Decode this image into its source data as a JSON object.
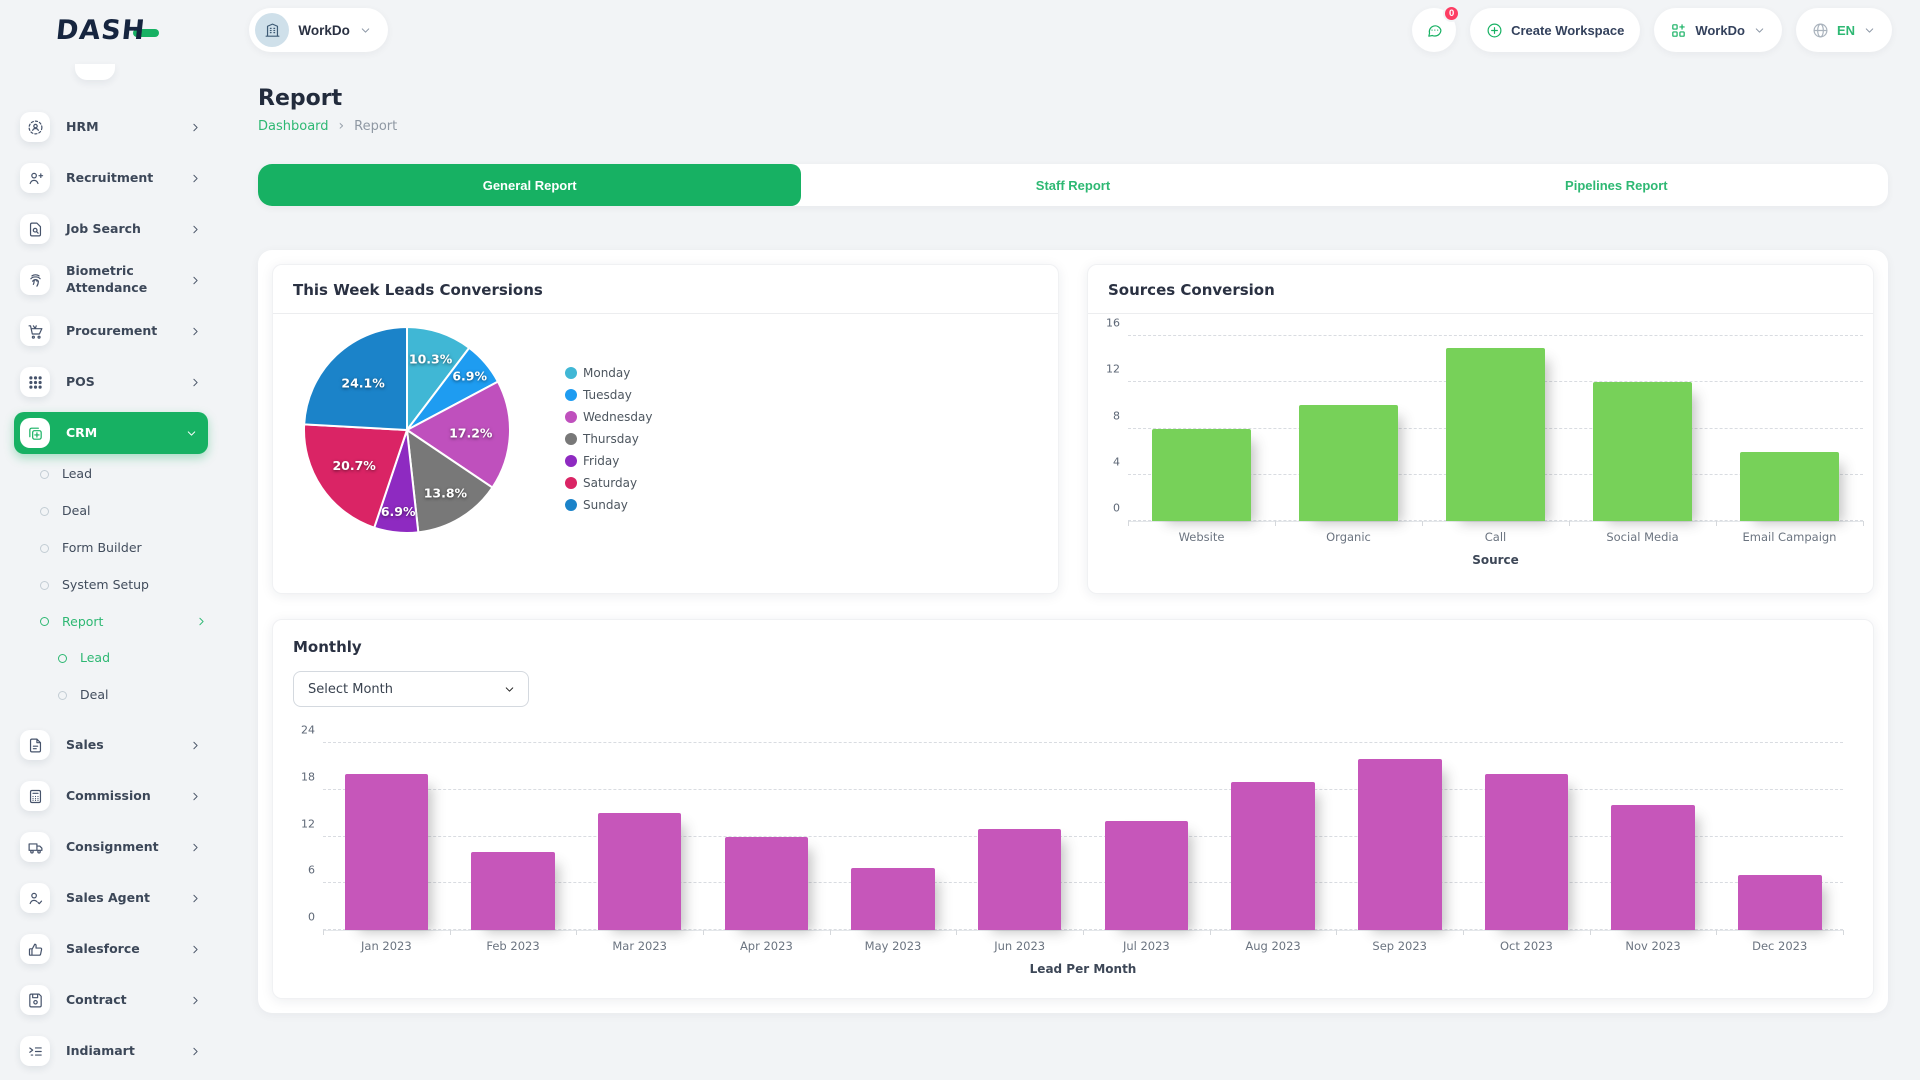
{
  "header": {
    "logo": "DASH",
    "workspace_label": "WorkDo",
    "messages_count": "0",
    "create_workspace_label": "Create Workspace",
    "workspace_switcher_label": "WorkDo",
    "language_label": "EN"
  },
  "sidebar": {
    "items": [
      {
        "label": "HRM",
        "icon": "hrm-icon",
        "level": 1,
        "chevron": "right",
        "active": false
      },
      {
        "label": "Recruitment",
        "icon": "recruitment-icon",
        "level": 1,
        "chevron": "right",
        "active": false
      },
      {
        "label": "Job Search",
        "icon": "job-search-icon",
        "level": 1,
        "chevron": "right",
        "active": false
      },
      {
        "label": "Biometric Attendance",
        "icon": "biometric-attendance-icon",
        "level": 1,
        "chevron": "right",
        "active": false
      },
      {
        "label": "Procurement",
        "icon": "procurement-icon",
        "level": 1,
        "chevron": "right",
        "active": false
      },
      {
        "label": "POS",
        "icon": "pos-icon",
        "level": 1,
        "chevron": "right",
        "active": false
      },
      {
        "label": "CRM",
        "icon": "crm-icon",
        "level": 1,
        "chevron": "down",
        "active": true
      },
      {
        "label": "Lead",
        "level": 2,
        "active": false
      },
      {
        "label": "Deal",
        "level": 2,
        "active": false
      },
      {
        "label": "Form Builder",
        "level": 2,
        "active": false
      },
      {
        "label": "System Setup",
        "level": 2,
        "active": false
      },
      {
        "label": "Report",
        "level": 2,
        "chevron": "right",
        "active": true
      },
      {
        "label": "Lead",
        "level": 3,
        "active": true
      },
      {
        "label": "Deal",
        "level": 3,
        "active": false
      },
      {
        "label": "Sales",
        "icon": "sales-icon",
        "level": 1,
        "chevron": "right",
        "active": false
      },
      {
        "label": "Commission",
        "icon": "commission-icon",
        "level": 1,
        "chevron": "right",
        "active": false
      },
      {
        "label": "Consignment",
        "icon": "consignment-icon",
        "level": 1,
        "chevron": "right",
        "active": false
      },
      {
        "label": "Sales Agent",
        "icon": "sales-agent-icon",
        "level": 1,
        "chevron": "right",
        "active": false
      },
      {
        "label": "Salesforce",
        "icon": "salesforce-icon",
        "level": 1,
        "chevron": "right",
        "active": false
      },
      {
        "label": "Contract",
        "icon": "contract-icon",
        "level": 1,
        "chevron": "right",
        "active": false
      },
      {
        "label": "Indiamart",
        "icon": "indiamart-icon",
        "level": 1,
        "chevron": "right",
        "active": false
      }
    ]
  },
  "page": {
    "title": "Report",
    "breadcrumb": [
      "Dashboard",
      "Report"
    ],
    "breadcrumb_separator": "›"
  },
  "tabs": [
    {
      "label": "General Report",
      "active": true
    },
    {
      "label": "Staff Report",
      "active": false
    },
    {
      "label": "Pipelines Report",
      "active": false
    }
  ],
  "cards": {
    "leads_title": "This Week Leads Conversions",
    "sources_title": "Sources Conversion",
    "monthly_title": "Monthly",
    "month_select_value": "Select Month"
  },
  "colors": {
    "accent_green": "#17b163",
    "link_green": "#2eb873",
    "source_bar_green": "#77d159",
    "monthly_bar_magenta": "#c656ba",
    "badge_red": "#fd3d63"
  },
  "chart_data": [
    {
      "id": "week_leads_pie",
      "type": "pie",
      "title": "This Week Leads Conversions",
      "labels": [
        "Monday",
        "Tuesday",
        "Wednesday",
        "Thursday",
        "Friday",
        "Saturday",
        "Sunday"
      ],
      "values": [
        10.3,
        6.9,
        17.2,
        13.8,
        6.9,
        20.7,
        24.1
      ],
      "value_labels": [
        "10.3%",
        "6.9%",
        "17.2%",
        "13.8%",
        "6.9%",
        "20.7%",
        "24.1%"
      ],
      "colors": [
        "#40b7d5",
        "#1e9cf1",
        "#bf50bd",
        "#787878",
        "#8e2ac1",
        "#da2465",
        "#1b83c9"
      ],
      "legend_position": "right"
    },
    {
      "id": "sources_bar",
      "type": "bar",
      "title": "Sources Conversion",
      "categories": [
        "Website",
        "Organic",
        "Call",
        "Social Media",
        "Email Campaign"
      ],
      "values": [
        8,
        10,
        15,
        12,
        6
      ],
      "xlabel": "Source",
      "ylabel": "",
      "ylim": [
        0,
        16
      ],
      "yticks": [
        0,
        4,
        8,
        12,
        16
      ],
      "bar_color": "#77d159",
      "grid": "dashed-horizontal"
    },
    {
      "id": "monthly_bar",
      "type": "bar",
      "title": "Monthly",
      "categories": [
        "Jan 2023",
        "Feb 2023",
        "Mar 2023",
        "Apr 2023",
        "May 2023",
        "Jun 2023",
        "Jul 2023",
        "Aug 2023",
        "Sep 2023",
        "Oct 2023",
        "Nov 2023",
        "Dec 2023"
      ],
      "values": [
        20,
        10,
        15,
        12,
        8,
        13,
        14,
        19,
        22,
        20,
        16,
        7
      ],
      "xlabel": "Lead Per Month",
      "ylabel": "",
      "ylim": [
        0,
        24
      ],
      "yticks": [
        0,
        6,
        12,
        18,
        24
      ],
      "bar_color": "#c656ba",
      "grid": "dashed-horizontal"
    }
  ]
}
